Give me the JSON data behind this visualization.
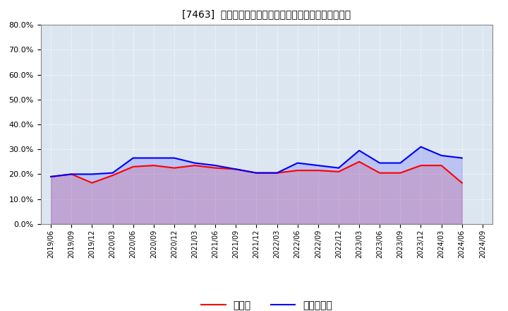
{
  "title": "[7463]  現預金、有利子負債の総資産に対する比率の推移",
  "x_labels": [
    "2019/06",
    "2019/09",
    "2019/12",
    "2020/03",
    "2020/06",
    "2020/09",
    "2020/12",
    "2021/03",
    "2021/06",
    "2021/09",
    "2021/12",
    "2022/03",
    "2022/06",
    "2022/09",
    "2022/12",
    "2023/03",
    "2023/06",
    "2023/09",
    "2023/12",
    "2024/03",
    "2024/06",
    "2024/09"
  ],
  "cash": [
    0.19,
    0.2,
    0.165,
    0.195,
    0.23,
    0.235,
    0.225,
    0.235,
    0.225,
    0.22,
    0.205,
    0.205,
    0.215,
    0.215,
    0.21,
    0.25,
    0.205,
    0.205,
    0.235,
    0.235,
    0.165,
    null
  ],
  "debt": [
    0.19,
    0.2,
    0.2,
    0.205,
    0.265,
    0.265,
    0.265,
    0.245,
    0.235,
    0.22,
    0.205,
    0.205,
    0.245,
    0.235,
    0.225,
    0.295,
    0.245,
    0.245,
    0.31,
    0.275,
    0.265,
    null
  ],
  "cash_color": "#ff0000",
  "debt_color": "#0000ff",
  "background_color": "#ffffff",
  "plot_bg_color": "#dce6f0",
  "grid_color": "#ffffff",
  "ylim": [
    0.0,
    0.8
  ],
  "yticks": [
    0.0,
    0.1,
    0.2,
    0.3,
    0.4,
    0.5,
    0.6,
    0.7,
    0.8
  ],
  "legend_cash": "現預金",
  "legend_debt": "有利子負債"
}
